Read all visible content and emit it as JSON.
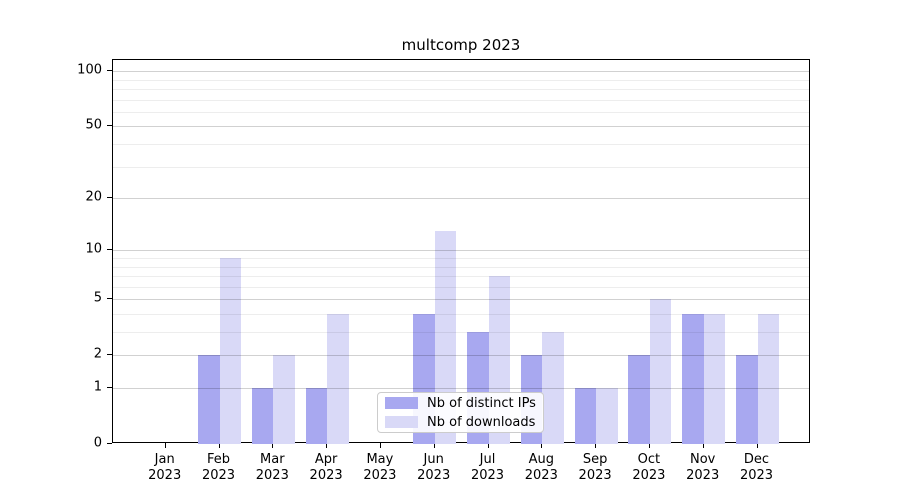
{
  "title": "multcomp 2023",
  "legend": {
    "items": [
      {
        "label": "Nb of distinct IPs",
        "color": "#a8a8f0"
      },
      {
        "label": "Nb of downloads",
        "color": "#d9d9f7"
      }
    ]
  },
  "chart_data": {
    "type": "bar",
    "title": "multcomp 2023",
    "categories": [
      {
        "month": "Jan",
        "year": "2023"
      },
      {
        "month": "Feb",
        "year": "2023"
      },
      {
        "month": "Mar",
        "year": "2023"
      },
      {
        "month": "Apr",
        "year": "2023"
      },
      {
        "month": "May",
        "year": "2023"
      },
      {
        "month": "Jun",
        "year": "2023"
      },
      {
        "month": "Jul",
        "year": "2023"
      },
      {
        "month": "Aug",
        "year": "2023"
      },
      {
        "month": "Sep",
        "year": "2023"
      },
      {
        "month": "Oct",
        "year": "2023"
      },
      {
        "month": "Nov",
        "year": "2023"
      },
      {
        "month": "Dec",
        "year": "2023"
      }
    ],
    "series": [
      {
        "name": "Nb of distinct IPs",
        "color": "#a8a8f0",
        "values": [
          0,
          2,
          1,
          1,
          0,
          4,
          3,
          2,
          1,
          2,
          4,
          2
        ]
      },
      {
        "name": "Nb of downloads",
        "color": "#d9d9f7",
        "values": [
          0,
          9,
          2,
          4,
          0,
          13,
          7,
          3,
          1,
          5,
          4,
          4
        ]
      }
    ],
    "y_scale": "log1p",
    "y_major_ticks": [
      0,
      1,
      2,
      5,
      10,
      20,
      50,
      100
    ],
    "y_minor_gridlines": [
      3,
      4,
      6,
      7,
      8,
      9,
      30,
      40,
      60,
      70,
      80,
      90
    ],
    "ylim": [
      0,
      115
    ],
    "xlabel": "",
    "ylabel": "",
    "grid": "both",
    "legend_position": "lower-center"
  },
  "colors": {
    "major_grid": "#cccccc",
    "minor_grid": "#ececec",
    "spine": "#000000",
    "background": "#ffffff"
  }
}
